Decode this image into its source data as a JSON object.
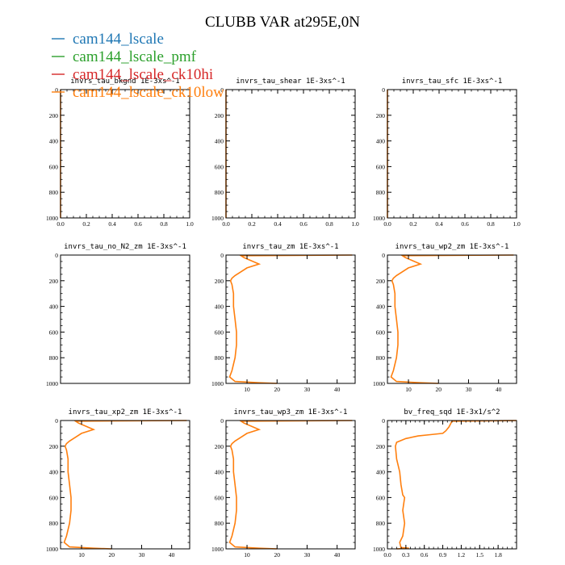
{
  "figure": {
    "title": "CLUBB VAR at295E,0N"
  },
  "legend": [
    {
      "label": "cam144_lscale",
      "color": "#1f77b4"
    },
    {
      "label": "cam144_lscale_pmf",
      "color": "#2ca02c"
    },
    {
      "label": "cam144_lscale_ck10hi",
      "color": "#d62728"
    },
    {
      "label": "cam144_lscale_ck10low",
      "color": "#ff7f0e"
    }
  ],
  "chart_data": [
    {
      "type": "line",
      "title": "invrs_tau_bkgnd   1E-3xs^-1",
      "xlim": [
        0,
        1
      ],
      "ylim": [
        1000,
        0
      ],
      "x_ticks": [
        "0.0",
        "0.2",
        "0.4",
        "0.6",
        "0.8",
        "1.0"
      ],
      "y_ticks": [
        "0",
        "200",
        "400",
        "600",
        "800",
        "1000"
      ],
      "series": [
        {
          "name": "cam144_lscale_ck10low",
          "x": [
            0,
            0
          ],
          "y": [
            0,
            1000
          ]
        }
      ]
    },
    {
      "type": "line",
      "title": "invrs_tau_shear   1E-3xs^-1",
      "xlim": [
        0,
        1
      ],
      "ylim": [
        1000,
        0
      ],
      "x_ticks": [
        "0.0",
        "0.2",
        "0.4",
        "0.6",
        "0.8",
        "1.0"
      ],
      "y_ticks": [
        "0",
        "200",
        "400",
        "600",
        "800",
        "1000"
      ],
      "series": [
        {
          "name": "cam144_lscale_ck10low",
          "x": [
            0,
            0
          ],
          "y": [
            0,
            1000
          ]
        }
      ]
    },
    {
      "type": "line",
      "title": "invrs_tau_sfc   1E-3xs^-1",
      "xlim": [
        0,
        1
      ],
      "ylim": [
        1000,
        0
      ],
      "x_ticks": [
        "0.0",
        "0.2",
        "0.4",
        "0.6",
        "0.8",
        "1.0"
      ],
      "y_ticks": [
        "0",
        "200",
        "400",
        "600",
        "800",
        "1000"
      ],
      "series": [
        {
          "name": "cam144_lscale_ck10low",
          "x": [
            0,
            0
          ],
          "y": [
            0,
            1000
          ]
        }
      ]
    },
    {
      "type": "line",
      "title": "invrs_tau_no_N2_zm   1E-3xs^-1",
      "xlim": [
        0,
        1
      ],
      "ylim": [
        1000,
        0
      ],
      "x_ticks": [],
      "y_ticks": [
        "0",
        "200",
        "400",
        "600",
        "800",
        "1000"
      ],
      "series": []
    },
    {
      "type": "line",
      "title": "invrs_tau_zm   1E-3xs^-1",
      "xlim": [
        3,
        46
      ],
      "ylim": [
        1000,
        0
      ],
      "x_ticks": [
        "10",
        "20",
        "30",
        "40"
      ],
      "y_ticks": [
        "0",
        "200",
        "400",
        "600",
        "800",
        "1000"
      ],
      "series": [
        {
          "name": "cam144_lscale_ck10low",
          "x": [
            45,
            8,
            9,
            11,
            14,
            10,
            8,
            6,
            5,
            4.5,
            5,
            5.5,
            5.5,
            6,
            6.5,
            6.5,
            6,
            5,
            4.2,
            6,
            14,
            20
          ],
          "y": [
            0,
            5,
            20,
            40,
            70,
            100,
            130,
            160,
            180,
            200,
            230,
            300,
            400,
            500,
            600,
            700,
            800,
            900,
            950,
            985,
            995,
            1000
          ]
        }
      ]
    },
    {
      "type": "line",
      "title": "invrs_tau_wp2_zm   1E-3xs^-1",
      "xlim": [
        3,
        46
      ],
      "ylim": [
        1000,
        0
      ],
      "x_ticks": [
        "10",
        "20",
        "30",
        "40"
      ],
      "y_ticks": [
        "0",
        "200",
        "400",
        "600",
        "800",
        "1000"
      ],
      "series": [
        {
          "name": "cam144_lscale_ck10low",
          "x": [
            45,
            8,
            9,
            11,
            14,
            10,
            8,
            6,
            5,
            4.5,
            5,
            5.5,
            5.5,
            6,
            6.5,
            6.5,
            6,
            5,
            4.2,
            6,
            14,
            20
          ],
          "y": [
            0,
            5,
            20,
            40,
            70,
            100,
            130,
            160,
            180,
            200,
            230,
            300,
            400,
            500,
            600,
            700,
            800,
            900,
            950,
            985,
            995,
            1000
          ]
        }
      ]
    },
    {
      "type": "line",
      "title": "invrs_tau_xp2_zm   1E-3xs^-1",
      "xlim": [
        3,
        46
      ],
      "ylim": [
        1000,
        0
      ],
      "x_ticks": [
        "10",
        "20",
        "30",
        "40"
      ],
      "y_ticks": [
        "0",
        "200",
        "400",
        "600",
        "800",
        "1000"
      ],
      "series": [
        {
          "name": "cam144_lscale_ck10low",
          "x": [
            45,
            8,
            9,
            11,
            14,
            10,
            8,
            6,
            5,
            4.5,
            5,
            5.5,
            5.5,
            6,
            6.5,
            6.5,
            6,
            5,
            4.2,
            6,
            14,
            20
          ],
          "y": [
            0,
            5,
            20,
            40,
            70,
            100,
            130,
            160,
            180,
            200,
            230,
            300,
            400,
            500,
            600,
            700,
            800,
            900,
            950,
            985,
            995,
            1000
          ]
        }
      ]
    },
    {
      "type": "line",
      "title": "invrs_tau_wp3_zm   1E-3xs^-1",
      "xlim": [
        3,
        46
      ],
      "ylim": [
        1000,
        0
      ],
      "x_ticks": [
        "10",
        "20",
        "30",
        "40"
      ],
      "y_ticks": [
        "0",
        "200",
        "400",
        "600",
        "800",
        "1000"
      ],
      "series": [
        {
          "name": "cam144_lscale_ck10low",
          "x": [
            45,
            8,
            9,
            11,
            14,
            10,
            8,
            6,
            5,
            4.5,
            5,
            5.5,
            5.5,
            6,
            6.5,
            6.5,
            6,
            5,
            4.2,
            6,
            14,
            20
          ],
          "y": [
            0,
            5,
            20,
            40,
            70,
            100,
            130,
            160,
            180,
            200,
            230,
            300,
            400,
            500,
            600,
            700,
            800,
            900,
            950,
            985,
            995,
            1000
          ]
        }
      ]
    },
    {
      "type": "line",
      "title": "bv_freq_sqd   1E-3x1/s^2",
      "xlim": [
        0,
        2.1
      ],
      "ylim": [
        1000,
        0
      ],
      "x_ticks": [
        "0.0",
        "0.3",
        "0.6",
        "0.9",
        "1.2",
        "1.5",
        "1.8"
      ],
      "y_ticks": [
        "0",
        "200",
        "400",
        "600",
        "800",
        "1000"
      ],
      "series": [
        {
          "name": "cam144_lscale_ck10low",
          "x": [
            2.1,
            1.05,
            1.0,
            0.95,
            0.9,
            0.7,
            0.5,
            0.3,
            0.15,
            0.13,
            0.15,
            0.2,
            0.22,
            0.25,
            0.28,
            0.25,
            0.28,
            0.25,
            0.2,
            0.22,
            0.35,
            0.15
          ],
          "y": [
            0,
            5,
            50,
            80,
            100,
            110,
            120,
            140,
            170,
            200,
            300,
            400,
            500,
            580,
            600,
            700,
            800,
            900,
            950,
            990,
            995,
            1000
          ]
        }
      ]
    }
  ]
}
